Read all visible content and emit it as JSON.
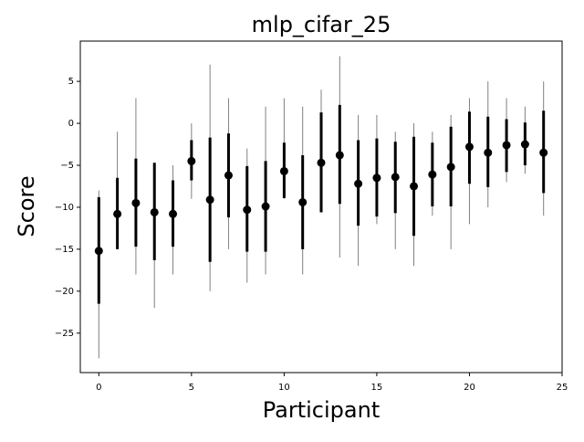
{
  "chart_data": {
    "type": "errorbar",
    "title": "mlp_cifar_25",
    "x_label": "Participant",
    "y_label": "Score",
    "x": [
      0,
      1,
      2,
      3,
      4,
      5,
      6,
      7,
      8,
      9,
      10,
      11,
      12,
      13,
      14,
      15,
      16,
      17,
      18,
      19,
      20,
      21,
      22,
      23,
      24
    ],
    "values": [
      -15.2,
      -10.8,
      -9.5,
      -10.6,
      -10.8,
      -4.5,
      -9.1,
      -6.2,
      -10.3,
      -9.9,
      -5.7,
      -9.4,
      -4.7,
      -3.8,
      -7.2,
      -6.5,
      -6.4,
      -7.5,
      -6.1,
      -5.2,
      -2.8,
      -3.5,
      -2.6,
      -2.5,
      -3.5
    ],
    "low": [
      -21.5,
      -15,
      -14.7,
      -16.3,
      -14.7,
      -6.8,
      -16.5,
      -11.2,
      -15.3,
      -15.3,
      -8.9,
      -15,
      -10.6,
      -9.6,
      -12.2,
      -11.1,
      -10.7,
      -13.4,
      -9.9,
      -9.9,
      -7.2,
      -7.6,
      -5.8,
      -5,
      -8.3
    ],
    "high": [
      -8.8,
      -6.5,
      -4.2,
      -4.7,
      -6.8,
      -2,
      -1.7,
      -1.2,
      -5.1,
      -4.5,
      -2.3,
      -3.8,
      1.3,
      2.2,
      -2,
      -1.8,
      -2.2,
      -1.6,
      -2.3,
      -0.4,
      1.4,
      0.8,
      0.5,
      0.1,
      1.5
    ],
    "min": [
      -28,
      -15,
      -18,
      -22,
      -18,
      -9,
      -20,
      -15,
      -19,
      -18,
      -9,
      -18,
      -10,
      -16,
      -17,
      -12,
      -15,
      -17,
      -11,
      -15,
      -12,
      -10,
      -7,
      -6,
      -11
    ],
    "max": [
      -8,
      -1,
      3,
      -4.7,
      -5,
      0,
      7,
      3,
      -3,
      2,
      3,
      2,
      4,
      8,
      1,
      1,
      -1,
      0,
      -1,
      1,
      3,
      5,
      3,
      2,
      5
    ],
    "dot_color": "#000000",
    "bar_color": "#000000",
    "range_color": "#808080",
    "xlim": [
      -1,
      25
    ],
    "ylim": [
      -29.7,
      9.8
    ],
    "xticks": [
      0,
      5,
      10,
      15,
      20,
      25
    ],
    "yticks": [
      {
        "value": -25,
        "label": "−25"
      },
      {
        "value": -20,
        "label": "−20"
      },
      {
        "value": -15,
        "label": "−15"
      },
      {
        "value": -10,
        "label": "−10"
      },
      {
        "value": -5,
        "label": "−5"
      },
      0,
      5
    ]
  }
}
